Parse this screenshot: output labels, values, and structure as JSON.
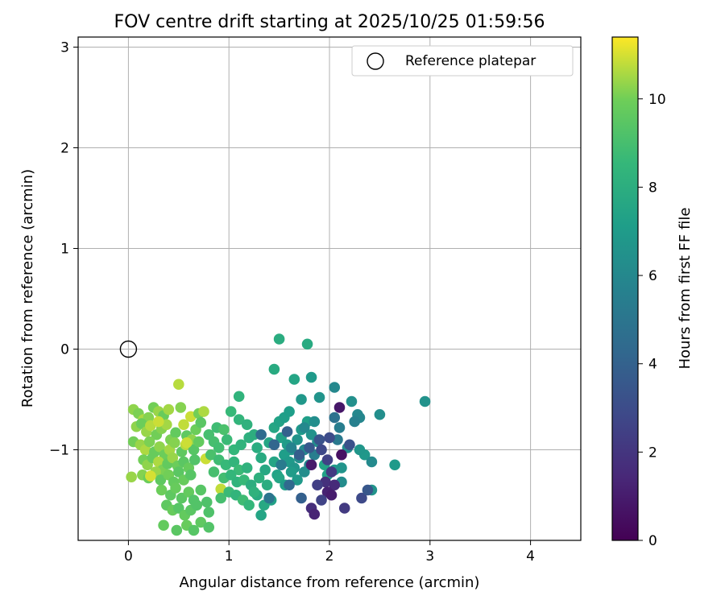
{
  "chart_data": {
    "type": "scatter",
    "title": "FOV centre drift starting at 2025/10/25 01:59:56",
    "xlabel": "Angular distance from reference (arcmin)",
    "ylabel": "Rotation from reference (arcmin)",
    "xlim": [
      -0.5,
      4.5
    ],
    "ylim": [
      -1.9,
      3.1
    ],
    "xticks": [
      "0",
      "1",
      "2",
      "3",
      "4"
    ],
    "yticks": [
      "−1",
      "0",
      "1",
      "2",
      "3"
    ],
    "grid": true,
    "legend": {
      "position": "top-right",
      "entries": [
        "Reference platepar"
      ]
    },
    "reference_point": {
      "x": 0.0,
      "y": 0.0,
      "label": "Reference platepar"
    },
    "colorbar": {
      "label": "Hours from first FF file",
      "colormap": "viridis",
      "range": [
        0,
        11.4
      ],
      "ticks": [
        "0",
        "2",
        "4",
        "6",
        "8",
        "10"
      ]
    },
    "points": [
      {
        "x": 0.05,
        "y": -0.6,
        "h": 10.3
      },
      {
        "x": 0.1,
        "y": -0.64,
        "h": 10.1
      },
      {
        "x": 0.15,
        "y": -0.7,
        "h": 10.6
      },
      {
        "x": 0.2,
        "y": -0.68,
        "h": 10.2
      },
      {
        "x": 0.25,
        "y": -0.58,
        "h": 10.0
      },
      {
        "x": 0.3,
        "y": -0.62,
        "h": 10.4
      },
      {
        "x": 0.35,
        "y": -0.66,
        "h": 9.8
      },
      {
        "x": 0.4,
        "y": -0.6,
        "h": 10.5
      },
      {
        "x": 0.5,
        "y": -0.35,
        "h": 10.7
      },
      {
        "x": 0.52,
        "y": -0.58,
        "h": 10.2
      },
      {
        "x": 0.62,
        "y": -0.67,
        "h": 10.9
      },
      {
        "x": 0.7,
        "y": -0.64,
        "h": 10.0
      },
      {
        "x": 0.75,
        "y": -0.62,
        "h": 10.6
      },
      {
        "x": 0.08,
        "y": -0.77,
        "h": 10.3
      },
      {
        "x": 0.13,
        "y": -0.74,
        "h": 9.9
      },
      {
        "x": 0.18,
        "y": -0.82,
        "h": 10.4
      },
      {
        "x": 0.22,
        "y": -0.76,
        "h": 10.7
      },
      {
        "x": 0.28,
        "y": -0.85,
        "h": 10.0
      },
      {
        "x": 0.33,
        "y": -0.79,
        "h": 10.2
      },
      {
        "x": 0.38,
        "y": -0.75,
        "h": 10.5
      },
      {
        "x": 0.42,
        "y": -0.9,
        "h": 10.1
      },
      {
        "x": 0.47,
        "y": -0.83,
        "h": 9.7
      },
      {
        "x": 0.55,
        "y": -0.75,
        "h": 10.8
      },
      {
        "x": 0.58,
        "y": -0.86,
        "h": 9.6
      },
      {
        "x": 0.63,
        "y": -0.9,
        "h": 10.3
      },
      {
        "x": 0.67,
        "y": -0.8,
        "h": 9.9
      },
      {
        "x": 0.72,
        "y": -0.73,
        "h": 9.5
      },
      {
        "x": 0.05,
        "y": -0.92,
        "h": 10.0
      },
      {
        "x": 0.12,
        "y": -0.95,
        "h": 10.4
      },
      {
        "x": 0.17,
        "y": -1.0,
        "h": 10.6
      },
      {
        "x": 0.21,
        "y": -0.92,
        "h": 10.1
      },
      {
        "x": 0.26,
        "y": -1.02,
        "h": 9.8
      },
      {
        "x": 0.31,
        "y": -0.97,
        "h": 10.3
      },
      {
        "x": 0.36,
        "y": -1.05,
        "h": 9.9
      },
      {
        "x": 0.41,
        "y": -1.0,
        "h": 10.5
      },
      {
        "x": 0.46,
        "y": -0.93,
        "h": 10.2
      },
      {
        "x": 0.53,
        "y": -1.02,
        "h": 9.6
      },
      {
        "x": 0.57,
        "y": -0.95,
        "h": 10.7
      },
      {
        "x": 0.65,
        "y": -1.0,
        "h": 9.4
      },
      {
        "x": 0.7,
        "y": -0.92,
        "h": 9.7
      },
      {
        "x": 0.15,
        "y": -1.1,
        "h": 10.0
      },
      {
        "x": 0.19,
        "y": -1.15,
        "h": 10.3
      },
      {
        "x": 0.24,
        "y": -1.08,
        "h": 9.8
      },
      {
        "x": 0.3,
        "y": -1.12,
        "h": 10.6
      },
      {
        "x": 0.34,
        "y": -1.2,
        "h": 10.1
      },
      {
        "x": 0.39,
        "y": -1.14,
        "h": 9.7
      },
      {
        "x": 0.44,
        "y": -1.08,
        "h": 10.4
      },
      {
        "x": 0.49,
        "y": -1.16,
        "h": 9.9
      },
      {
        "x": 0.55,
        "y": -1.12,
        "h": 9.5
      },
      {
        "x": 0.6,
        "y": -1.18,
        "h": 9.8
      },
      {
        "x": 0.66,
        "y": -1.1,
        "h": 9.3
      },
      {
        "x": 0.14,
        "y": -1.25,
        "h": 10.2
      },
      {
        "x": 0.2,
        "y": -1.28,
        "h": 9.9
      },
      {
        "x": 0.27,
        "y": -1.22,
        "h": 10.4
      },
      {
        "x": 0.32,
        "y": -1.3,
        "h": 9.6
      },
      {
        "x": 0.4,
        "y": -1.25,
        "h": 10.0
      },
      {
        "x": 0.45,
        "y": -1.32,
        "h": 9.7
      },
      {
        "x": 0.5,
        "y": -1.22,
        "h": 9.5
      },
      {
        "x": 0.55,
        "y": -1.3,
        "h": 9.8
      },
      {
        "x": 0.62,
        "y": -1.25,
        "h": 9.4
      },
      {
        "x": 0.33,
        "y": -1.4,
        "h": 9.9
      },
      {
        "x": 0.42,
        "y": -1.45,
        "h": 9.6
      },
      {
        "x": 0.47,
        "y": -1.38,
        "h": 9.8
      },
      {
        "x": 0.53,
        "y": -1.48,
        "h": 9.5
      },
      {
        "x": 0.6,
        "y": -1.42,
        "h": 9.7
      },
      {
        "x": 0.65,
        "y": -1.5,
        "h": 9.3
      },
      {
        "x": 0.72,
        "y": -1.4,
        "h": 9.4
      },
      {
        "x": 0.78,
        "y": -1.52,
        "h": 9.2
      },
      {
        "x": 0.38,
        "y": -1.55,
        "h": 9.6
      },
      {
        "x": 0.44,
        "y": -1.6,
        "h": 9.8
      },
      {
        "x": 0.5,
        "y": -1.58,
        "h": 9.4
      },
      {
        "x": 0.56,
        "y": -1.65,
        "h": 9.7
      },
      {
        "x": 0.62,
        "y": -1.6,
        "h": 9.5
      },
      {
        "x": 0.68,
        "y": -1.55,
        "h": 9.3
      },
      {
        "x": 0.8,
        "y": -1.62,
        "h": 9.2
      },
      {
        "x": 0.35,
        "y": -1.75,
        "h": 9.7
      },
      {
        "x": 0.48,
        "y": -1.8,
        "h": 9.5
      },
      {
        "x": 0.58,
        "y": -1.75,
        "h": 9.8
      },
      {
        "x": 0.65,
        "y": -1.8,
        "h": 9.4
      },
      {
        "x": 0.72,
        "y": -1.72,
        "h": 9.6
      },
      {
        "x": 0.8,
        "y": -1.77,
        "h": 9.3
      },
      {
        "x": 0.03,
        "y": -1.27,
        "h": 10.4
      },
      {
        "x": 0.92,
        "y": -1.39,
        "h": 10.8
      },
      {
        "x": 0.77,
        "y": -1.09,
        "h": 10.9
      },
      {
        "x": 0.22,
        "y": -1.26,
        "h": 11.0
      },
      {
        "x": 0.3,
        "y": -0.72,
        "h": 10.9
      },
      {
        "x": 0.58,
        "y": -0.93,
        "h": 10.9
      },
      {
        "x": 0.8,
        "y": -0.85,
        "h": 9.0
      },
      {
        "x": 0.88,
        "y": -0.78,
        "h": 8.8
      },
      {
        "x": 0.95,
        "y": -0.8,
        "h": 9.1
      },
      {
        "x": 1.02,
        "y": -0.62,
        "h": 8.6
      },
      {
        "x": 1.1,
        "y": -0.7,
        "h": 8.4
      },
      {
        "x": 1.18,
        "y": -0.75,
        "h": 8.2
      },
      {
        "x": 0.85,
        "y": -0.92,
        "h": 9.0
      },
      {
        "x": 0.9,
        "y": -0.98,
        "h": 8.9
      },
      {
        "x": 0.98,
        "y": -0.9,
        "h": 8.7
      },
      {
        "x": 1.05,
        "y": -1.0,
        "h": 8.5
      },
      {
        "x": 1.12,
        "y": -0.95,
        "h": 8.3
      },
      {
        "x": 1.2,
        "y": -0.88,
        "h": 8.1
      },
      {
        "x": 0.82,
        "y": -1.05,
        "h": 9.1
      },
      {
        "x": 0.9,
        "y": -1.1,
        "h": 8.8
      },
      {
        "x": 0.97,
        "y": -1.15,
        "h": 8.6
      },
      {
        "x": 1.05,
        "y": -1.12,
        "h": 8.4
      },
      {
        "x": 1.1,
        "y": -1.2,
        "h": 8.7
      },
      {
        "x": 1.18,
        "y": -1.18,
        "h": 8.2
      },
      {
        "x": 0.85,
        "y": -1.22,
        "h": 9.0
      },
      {
        "x": 0.95,
        "y": -1.28,
        "h": 8.9
      },
      {
        "x": 1.02,
        "y": -1.25,
        "h": 8.5
      },
      {
        "x": 1.08,
        "y": -1.32,
        "h": 8.3
      },
      {
        "x": 1.15,
        "y": -1.3,
        "h": 8.6
      },
      {
        "x": 1.22,
        "y": -1.35,
        "h": 8.0
      },
      {
        "x": 0.92,
        "y": -1.48,
        "h": 9.0
      },
      {
        "x": 1.0,
        "y": -1.42,
        "h": 8.7
      },
      {
        "x": 1.07,
        "y": -1.45,
        "h": 8.4
      },
      {
        "x": 1.14,
        "y": -1.5,
        "h": 8.8
      },
      {
        "x": 1.2,
        "y": -1.55,
        "h": 8.5
      },
      {
        "x": 1.28,
        "y": -1.45,
        "h": 7.8
      },
      {
        "x": 1.32,
        "y": -1.65,
        "h": 7.5
      },
      {
        "x": 1.1,
        "y": -0.47,
        "h": 8.3
      },
      {
        "x": 1.25,
        "y": -0.85,
        "h": 8.0
      },
      {
        "x": 1.28,
        "y": -0.98,
        "h": 7.9
      },
      {
        "x": 1.32,
        "y": -1.08,
        "h": 7.8
      },
      {
        "x": 1.36,
        "y": -1.2,
        "h": 7.7
      },
      {
        "x": 1.4,
        "y": -0.93,
        "h": 7.6
      },
      {
        "x": 1.45,
        "y": -1.12,
        "h": 7.5
      },
      {
        "x": 1.48,
        "y": -1.25,
        "h": 7.4
      },
      {
        "x": 1.38,
        "y": -1.35,
        "h": 7.9
      },
      {
        "x": 1.42,
        "y": -1.5,
        "h": 7.3
      },
      {
        "x": 1.3,
        "y": -1.28,
        "h": 8.1
      },
      {
        "x": 1.25,
        "y": -1.42,
        "h": 8.2
      },
      {
        "x": 1.35,
        "y": -1.55,
        "h": 7.7
      },
      {
        "x": 1.45,
        "y": -0.78,
        "h": 7.6
      },
      {
        "x": 1.5,
        "y": -0.72,
        "h": 7.4
      },
      {
        "x": 1.55,
        "y": -0.68,
        "h": 7.2
      },
      {
        "x": 1.6,
        "y": -0.62,
        "h": 7.1
      },
      {
        "x": 1.65,
        "y": -0.3,
        "h": 7.5
      },
      {
        "x": 1.45,
        "y": -0.2,
        "h": 7.8
      },
      {
        "x": 1.5,
        "y": 0.1,
        "h": 7.9
      },
      {
        "x": 1.78,
        "y": 0.05,
        "h": 7.8
      },
      {
        "x": 1.72,
        "y": -0.5,
        "h": 6.8
      },
      {
        "x": 1.82,
        "y": -0.28,
        "h": 6.9
      },
      {
        "x": 1.9,
        "y": -0.48,
        "h": 6.6
      },
      {
        "x": 2.05,
        "y": -0.38,
        "h": 6.0
      },
      {
        "x": 1.52,
        "y": -0.88,
        "h": 7.3
      },
      {
        "x": 1.58,
        "y": -0.95,
        "h": 7.0
      },
      {
        "x": 1.62,
        "y": -1.0,
        "h": 6.8
      },
      {
        "x": 1.68,
        "y": -0.9,
        "h": 6.6
      },
      {
        "x": 1.72,
        "y": -0.8,
        "h": 6.9
      },
      {
        "x": 1.78,
        "y": -0.72,
        "h": 7.2
      },
      {
        "x": 1.82,
        "y": -0.85,
        "h": 6.5
      },
      {
        "x": 1.88,
        "y": -0.92,
        "h": 6.2
      },
      {
        "x": 1.55,
        "y": -1.05,
        "h": 7.1
      },
      {
        "x": 1.6,
        "y": -1.12,
        "h": 6.9
      },
      {
        "x": 1.65,
        "y": -1.18,
        "h": 6.7
      },
      {
        "x": 1.7,
        "y": -1.08,
        "h": 6.4
      },
      {
        "x": 1.75,
        "y": -1.0,
        "h": 6.1
      },
      {
        "x": 1.8,
        "y": -1.15,
        "h": 5.8
      },
      {
        "x": 1.85,
        "y": -1.05,
        "h": 5.5
      },
      {
        "x": 1.5,
        "y": -1.28,
        "h": 7.5
      },
      {
        "x": 1.56,
        "y": -1.35,
        "h": 7.2
      },
      {
        "x": 1.62,
        "y": -1.22,
        "h": 7.0
      },
      {
        "x": 1.68,
        "y": -1.3,
        "h": 6.9
      },
      {
        "x": 1.75,
        "y": -1.22,
        "h": 6.3
      },
      {
        "x": 1.95,
        "y": -1.15,
        "h": 7.4
      },
      {
        "x": 1.98,
        "y": -1.25,
        "h": 7.3
      },
      {
        "x": 2.05,
        "y": -1.2,
        "h": 7.0
      },
      {
        "x": 2.12,
        "y": -1.18,
        "h": 6.6
      },
      {
        "x": 2.18,
        "y": -0.98,
        "h": 6.2
      },
      {
        "x": 2.22,
        "y": -0.52,
        "h": 6.4
      },
      {
        "x": 2.28,
        "y": -0.65,
        "h": 6.0
      },
      {
        "x": 2.35,
        "y": -1.05,
        "h": 6.8
      },
      {
        "x": 2.42,
        "y": -1.12,
        "h": 6.1
      },
      {
        "x": 2.42,
        "y": -1.4,
        "h": 6.6
      },
      {
        "x": 2.5,
        "y": -0.65,
        "h": 6.3
      },
      {
        "x": 2.65,
        "y": -1.15,
        "h": 6.9
      },
      {
        "x": 2.95,
        "y": -0.52,
        "h": 6.5
      },
      {
        "x": 2.3,
        "y": -0.68,
        "h": 5.9
      },
      {
        "x": 2.25,
        "y": -0.72,
        "h": 5.6
      },
      {
        "x": 2.12,
        "y": -1.32,
        "h": 6.2
      },
      {
        "x": 2.3,
        "y": -1.0,
        "h": 6.7
      },
      {
        "x": 2.08,
        "y": -0.9,
        "h": 5.2
      },
      {
        "x": 2.05,
        "y": -0.68,
        "h": 4.8
      },
      {
        "x": 2.1,
        "y": -0.78,
        "h": 5.4
      },
      {
        "x": 1.32,
        "y": -0.85,
        "h": 4.5
      },
      {
        "x": 1.45,
        "y": -0.95,
        "h": 4.2
      },
      {
        "x": 1.58,
        "y": -0.82,
        "h": 4.0
      },
      {
        "x": 1.7,
        "y": -1.05,
        "h": 3.8
      },
      {
        "x": 1.8,
        "y": -0.98,
        "h": 3.6
      },
      {
        "x": 1.9,
        "y": -0.9,
        "h": 3.3
      },
      {
        "x": 1.92,
        "y": -1.0,
        "h": 2.8
      },
      {
        "x": 1.98,
        "y": -1.1,
        "h": 2.5
      },
      {
        "x": 2.0,
        "y": -0.88,
        "h": 3.0
      },
      {
        "x": 2.02,
        "y": -1.22,
        "h": 2.2
      },
      {
        "x": 1.96,
        "y": -1.32,
        "h": 1.8
      },
      {
        "x": 1.88,
        "y": -1.35,
        "h": 2.4
      },
      {
        "x": 2.05,
        "y": -1.35,
        "h": 1.5
      },
      {
        "x": 1.98,
        "y": -1.42,
        "h": 1.2
      },
      {
        "x": 2.02,
        "y": -1.45,
        "h": 1.0
      },
      {
        "x": 1.92,
        "y": -1.5,
        "h": 2.6
      },
      {
        "x": 1.82,
        "y": -1.58,
        "h": 1.7
      },
      {
        "x": 1.85,
        "y": -1.64,
        "h": 1.3
      },
      {
        "x": 2.15,
        "y": -1.58,
        "h": 2.2
      },
      {
        "x": 2.32,
        "y": -1.48,
        "h": 2.9
      },
      {
        "x": 2.38,
        "y": -1.4,
        "h": 3.5
      },
      {
        "x": 2.1,
        "y": -0.58,
        "h": 0.8
      },
      {
        "x": 2.12,
        "y": -1.05,
        "h": 0.6
      },
      {
        "x": 1.82,
        "y": -1.15,
        "h": 0.9
      },
      {
        "x": 2.2,
        "y": -0.95,
        "h": 3.2
      },
      {
        "x": 1.72,
        "y": -1.48,
        "h": 3.9
      },
      {
        "x": 1.6,
        "y": -1.35,
        "h": 4.4
      },
      {
        "x": 1.4,
        "y": -1.48,
        "h": 5.0
      },
      {
        "x": 1.52,
        "y": -1.15,
        "h": 5.3
      },
      {
        "x": 1.62,
        "y": -0.98,
        "h": 5.7
      },
      {
        "x": 1.75,
        "y": -0.78,
        "h": 6.0
      },
      {
        "x": 1.85,
        "y": -0.72,
        "h": 6.3
      }
    ]
  }
}
